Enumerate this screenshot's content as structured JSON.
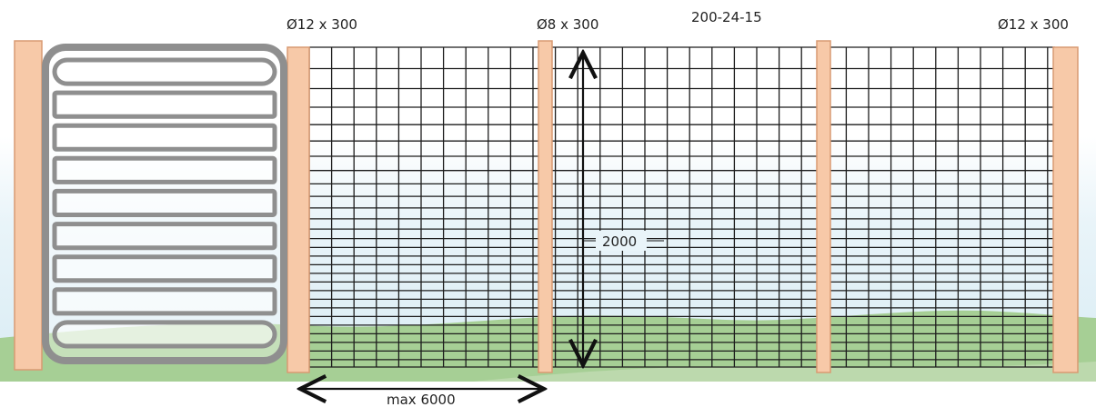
{
  "labels": {
    "post_left": "Ø12 x 300",
    "post_mid": "Ø8 x 300",
    "mesh_spec": "200-24-15",
    "post_right": "Ø12 x 300",
    "height_dim": "2000",
    "span_dim": "max 6000"
  },
  "colors": {
    "post_fill": "#f7c9a8",
    "post_stroke": "#d99a72",
    "sky": "#e3f1f8",
    "grass": "#a6cf95",
    "mesh": "#1c1c1c",
    "gate_frame": "#8f8f8f",
    "gate_inner": "#ffffff"
  },
  "diagram": {
    "gate_rails": 9,
    "mesh_panels": 3
  }
}
